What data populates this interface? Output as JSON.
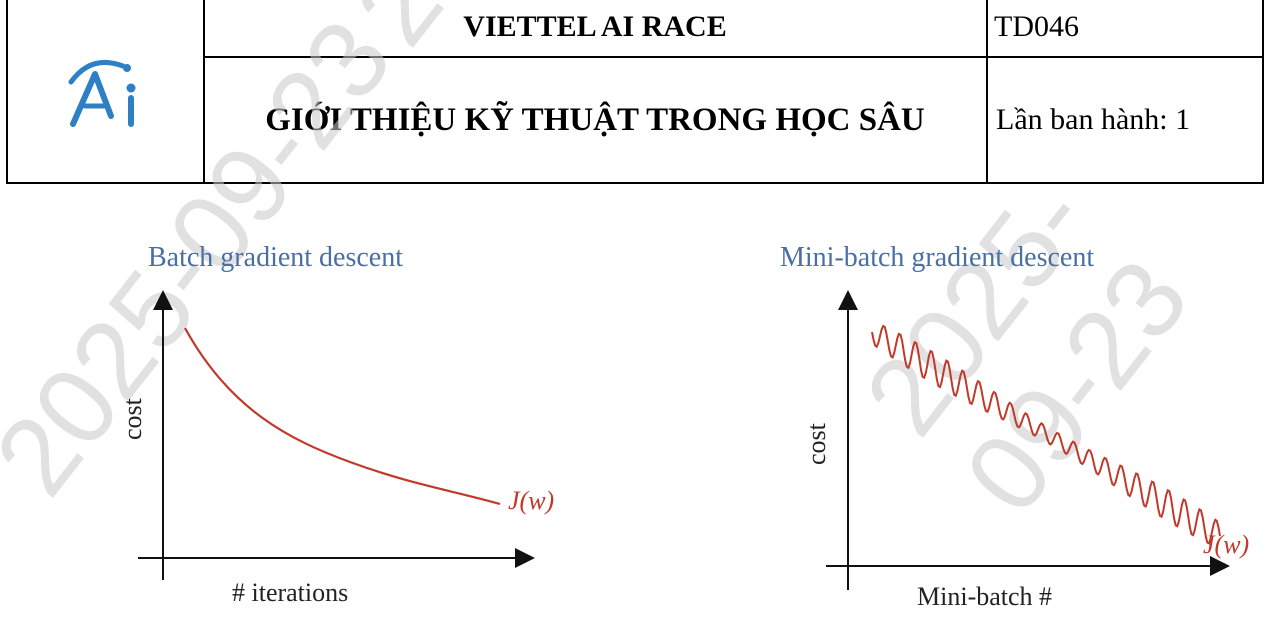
{
  "header": {
    "logo_text": "Ai",
    "title_main": "VIETTEL AI RACE",
    "title_sub": "GIỚI THIỆU KỸ THUẬT TRONG HỌC SÂU",
    "doc_code": "TD046",
    "issue": "Lần ban hành: 1"
  },
  "watermark": {
    "text": "2025-09-23"
  },
  "figures": [
    {
      "title": "Batch gradient descent",
      "ylabel": "cost",
      "xlabel": "# iterations",
      "curve_label": "J(w)",
      "curve_color": "#c0392b",
      "title_color": "#4a6fa5"
    },
    {
      "title": "Mini-batch gradient descent",
      "ylabel": "cost",
      "xlabel": "Mini-batch #",
      "curve_label": "J(w)",
      "curve_color": "#c0392b",
      "title_color": "#4a6fa5"
    }
  ]
}
